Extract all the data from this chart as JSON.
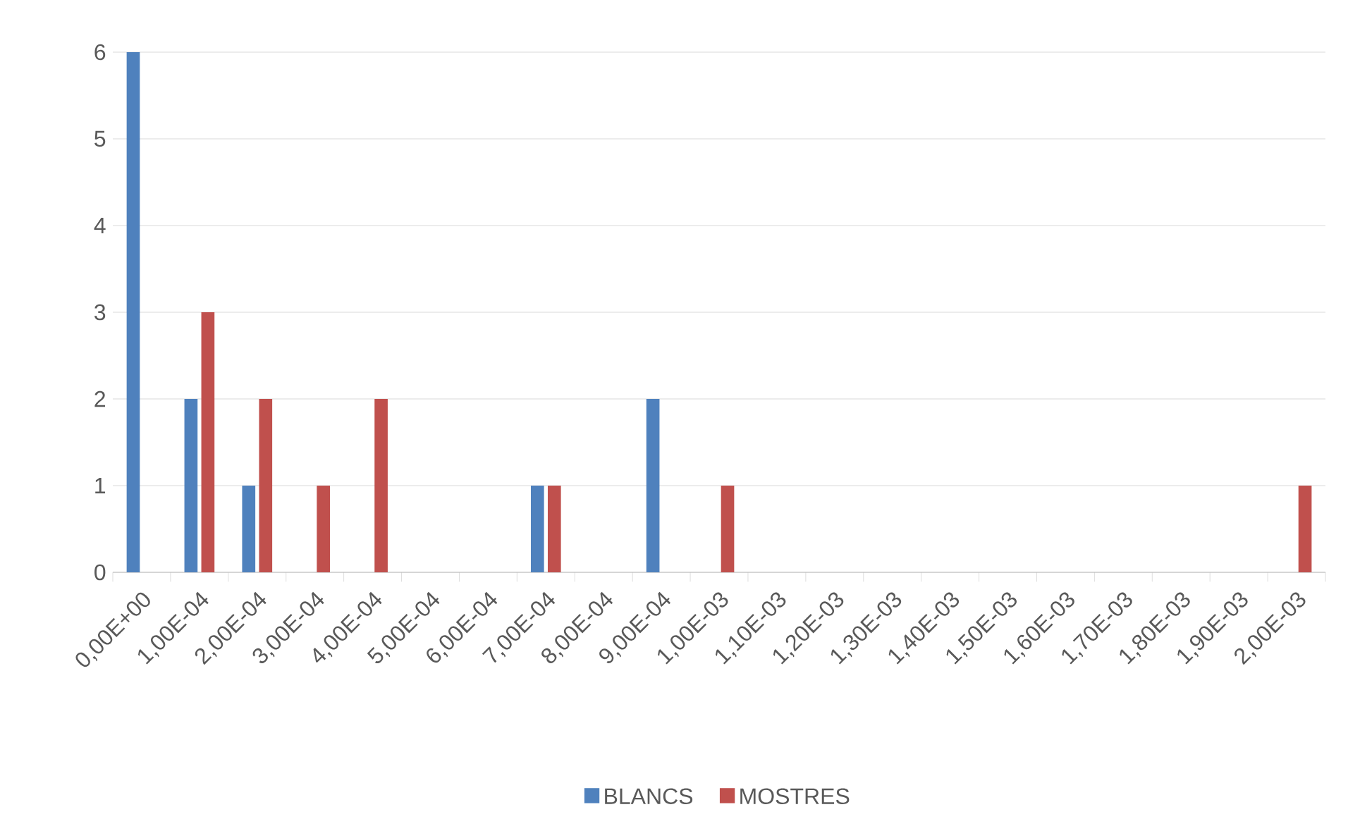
{
  "chart_data": {
    "type": "bar",
    "categories": [
      "0,00E+00",
      "1,00E-04",
      "2,00E-04",
      "3,00E-04",
      "4,00E-04",
      "5,00E-04",
      "6,00E-04",
      "7,00E-04",
      "8,00E-04",
      "9,00E-04",
      "1,00E-03",
      "1,10E-03",
      "1,20E-03",
      "1,30E-03",
      "1,40E-03",
      "1,50E-03",
      "1,60E-03",
      "1,70E-03",
      "1,80E-03",
      "1,90E-03",
      "2,00E-03"
    ],
    "series": [
      {
        "name": "BLANCS",
        "color": "#4f81bd",
        "values": [
          6,
          2,
          1,
          0,
          0,
          0,
          0,
          1,
          0,
          2,
          0,
          0,
          0,
          0,
          0,
          0,
          0,
          0,
          0,
          0,
          0
        ]
      },
      {
        "name": "MOSTRES",
        "color": "#c0504d",
        "values": [
          0,
          3,
          2,
          1,
          2,
          0,
          0,
          1,
          0,
          0,
          1,
          0,
          0,
          0,
          0,
          0,
          0,
          0,
          0,
          0,
          1
        ]
      }
    ],
    "ylim": [
      0,
      6
    ],
    "yticks": [
      0,
      1,
      2,
      3,
      4,
      5,
      6
    ],
    "grid": "y",
    "legend": "bottom"
  }
}
